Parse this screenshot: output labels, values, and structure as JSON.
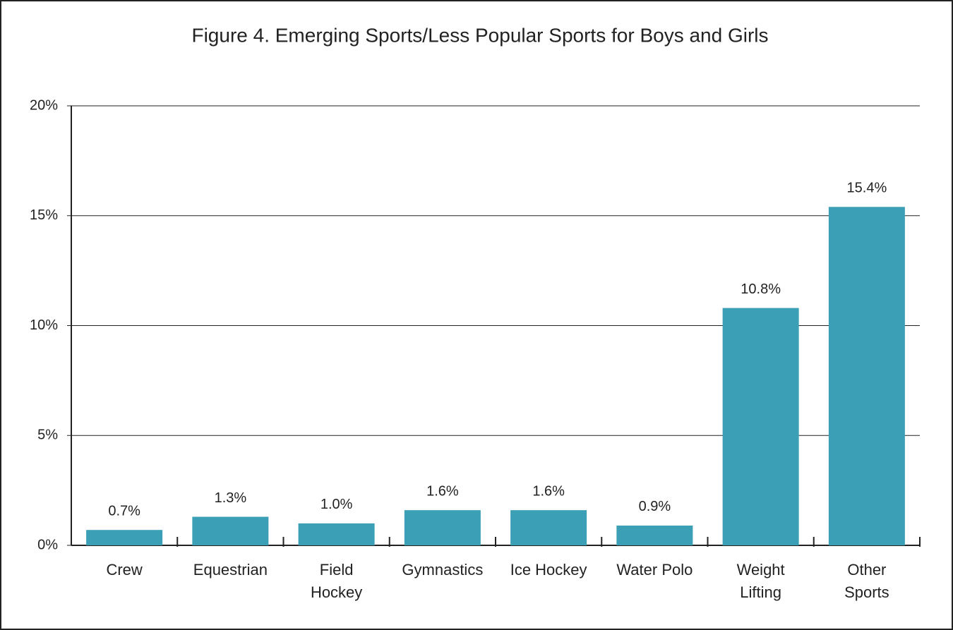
{
  "chart_data": {
    "type": "bar",
    "title": "Figure 4. Emerging Sports/Less Popular Sports for Boys and Girls",
    "categories": [
      "Crew",
      "Equestrian",
      "Field\nHockey",
      "Gymnastics",
      "Ice Hockey",
      "Water Polo",
      "Weight\nLifting",
      "Other\nSports"
    ],
    "values": [
      0.7,
      1.3,
      1.0,
      1.6,
      1.6,
      0.9,
      10.8,
      15.4
    ],
    "value_labels": [
      "0.7%",
      "1.3%",
      "1.0%",
      "1.6%",
      "1.6%",
      "0.9%",
      "10.8%",
      "15.4%"
    ],
    "color": "#3b9fb6",
    "ylim": [
      0,
      20
    ],
    "yticks": [
      {
        "value": 0,
        "label": "0%"
      },
      {
        "value": 5,
        "label": "5%"
      },
      {
        "value": 10,
        "label": "10%"
      },
      {
        "value": 15,
        "label": "15%"
      },
      {
        "value": 20,
        "label": "20%"
      }
    ],
    "grid": true
  }
}
